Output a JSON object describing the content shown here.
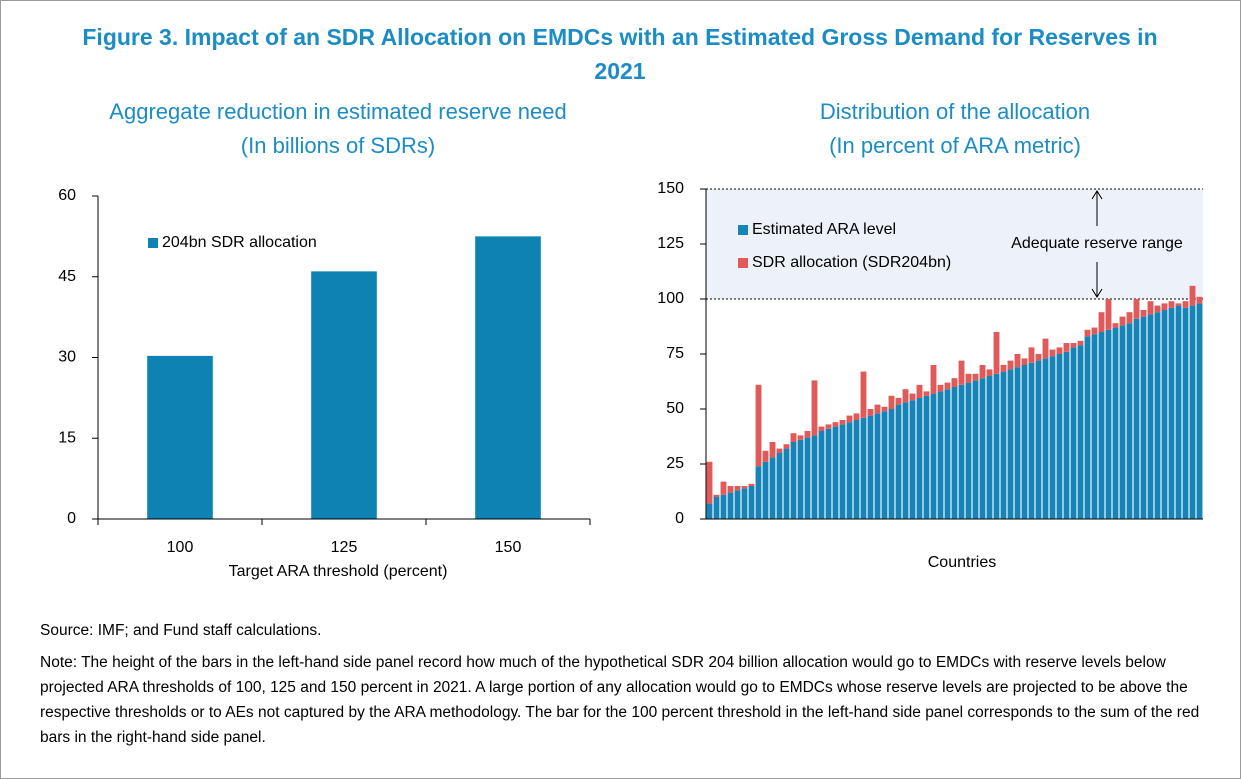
{
  "title": "Figure 3. Impact of an SDR Allocation on EMDCs with an Estimated Gross Demand for Reserves in 2021",
  "source": "Source: IMF; and Fund staff calculations.",
  "note": "Note: The height of the bars in the left-hand side panel record how much of the hypothetical SDR 204 billion allocation would go to EMDCs with reserve levels below projected ARA thresholds of 100, 125 and 150 percent in 2021. A large portion of any allocation would go to EMDCs whose reserve levels are projected to be above the respective thresholds or to AEs not captured by the ARA methodology. The bar for the 100 percent threshold in the left-hand side panel corresponds to the sum of the red bars in the right-hand side panel.",
  "chart_data": [
    {
      "type": "bar",
      "title": "Aggregate reduction in estimated reserve need",
      "subtitle": "(In billions of SDRs)",
      "x_label": "Target ARA threshold (percent)",
      "categories": [
        "100",
        "125",
        "150"
      ],
      "series": [
        {
          "name": "204bn SDR allocation",
          "color": "#0d82b3",
          "values": [
            30.3,
            46,
            52.5
          ]
        }
      ],
      "ylim": [
        0,
        60
      ],
      "yticks": [
        0,
        15,
        30,
        45,
        60
      ],
      "legend": "upper left"
    },
    {
      "type": "stacked_bar",
      "title": "Distribution of the allocation",
      "subtitle": "(In percent of ARA metric)",
      "x_label": "Countries",
      "series": [
        {
          "name": "Estimated ARA level",
          "color": "#1784b8",
          "values": [
            7,
            10,
            11,
            12,
            13,
            14,
            15,
            24,
            26,
            28,
            30,
            32,
            35,
            36,
            37,
            38,
            40,
            41,
            42,
            43,
            44,
            45,
            46,
            47,
            48,
            49,
            50,
            52,
            53,
            54,
            55,
            56,
            57,
            58,
            59,
            60,
            61,
            62,
            63,
            64,
            65,
            66,
            67,
            68,
            69,
            70,
            71,
            72,
            73,
            74,
            75,
            76,
            78,
            79,
            83,
            84,
            85,
            86,
            87,
            88,
            89,
            91,
            92,
            93,
            94,
            95,
            96,
            97,
            96,
            97,
            98
          ]
        },
        {
          "name": "SDR allocation (SDR204bn)",
          "color": "#e05a5a",
          "values": [
            19,
            1,
            6,
            3,
            2,
            1,
            1,
            37,
            5,
            7,
            2,
            2,
            4,
            2,
            3,
            25,
            2,
            2,
            2,
            2,
            3,
            3,
            21,
            3,
            4,
            2,
            6,
            3,
            6,
            3,
            6,
            2,
            13,
            3,
            3,
            4,
            11,
            4,
            3,
            6,
            3,
            19,
            3,
            4,
            6,
            3,
            7,
            3,
            9,
            3,
            3,
            4,
            2,
            2,
            3,
            3,
            9,
            14,
            2,
            4,
            5,
            9,
            3,
            6,
            3,
            3,
            3,
            1,
            3,
            9,
            3
          ]
        }
      ],
      "ylim": [
        0,
        150
      ],
      "yticks": [
        0,
        25,
        50,
        75,
        100,
        125,
        150
      ],
      "legend": "upper left",
      "band": {
        "label": "Adequate reserve range",
        "range": [
          100,
          150
        ],
        "color": "#edf1f9"
      }
    }
  ]
}
